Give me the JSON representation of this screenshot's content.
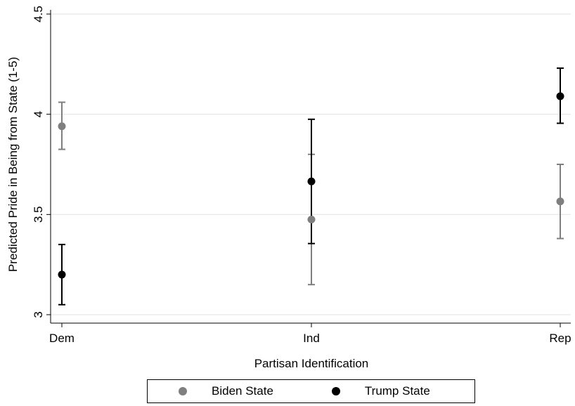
{
  "chart_data": {
    "type": "scatter",
    "title": "",
    "xlabel": "Partisan Identification",
    "ylabel": "Predicted Pride in Being from State (1-5)",
    "categories": [
      "Dem",
      "Ind",
      "Rep"
    ],
    "ylim": [
      3,
      4.5
    ],
    "yticks": [
      3,
      3.5,
      4,
      4.5
    ],
    "ytick_labels": [
      "3",
      "3.5",
      "4",
      "4.5"
    ],
    "grid": true,
    "legend_position": "bottom",
    "series": [
      {
        "name": "Biden State",
        "color": "#7f7f7f",
        "values": [
          3.94,
          3.475,
          3.565
        ],
        "ci_low": [
          3.825,
          3.15,
          3.38
        ],
        "ci_high": [
          4.06,
          3.8,
          3.75
        ]
      },
      {
        "name": "Trump State",
        "color": "#000000",
        "values": [
          3.2,
          3.665,
          4.09
        ],
        "ci_low": [
          3.05,
          3.355,
          3.955
        ],
        "ci_high": [
          3.35,
          3.975,
          4.23
        ]
      }
    ]
  }
}
